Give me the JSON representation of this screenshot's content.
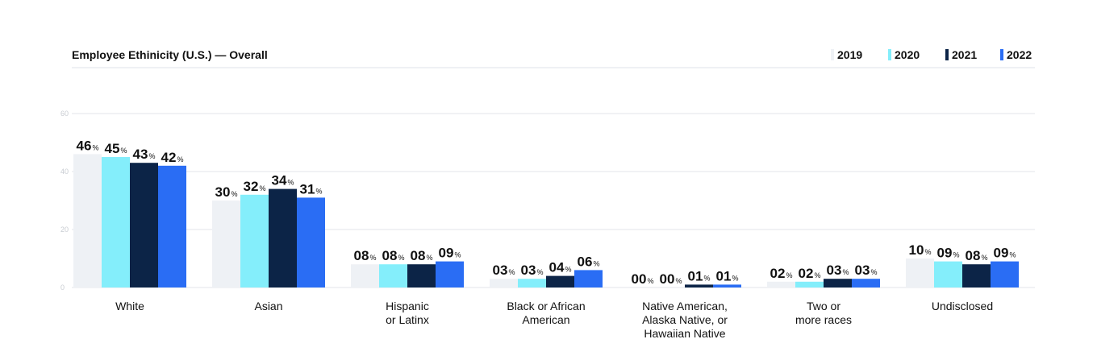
{
  "chart_data": {
    "type": "bar",
    "title": "Employee Ethinicity (U.S.) — Overall",
    "xlabel": "",
    "ylabel": "",
    "ylim": [
      0,
      60
    ],
    "yticks": [
      0,
      20,
      40,
      60
    ],
    "grid": true,
    "legend_position": "top-right",
    "categories": [
      [
        "White"
      ],
      [
        "Asian"
      ],
      [
        "Hispanic",
        "or Latinx"
      ],
      [
        "Black or African",
        "American"
      ],
      [
        "Native American,",
        "Alaska Native, or",
        "Hawaiian Native"
      ],
      [
        "Two or",
        "more races"
      ],
      [
        "Undisclosed"
      ]
    ],
    "series": [
      {
        "name": "2019",
        "color": "#eef1f5",
        "values": [
          46,
          30,
          8,
          3,
          0,
          2,
          10
        ],
        "labels": [
          "46",
          "30",
          "08",
          "03",
          "00",
          "02",
          "10"
        ]
      },
      {
        "name": "2020",
        "color": "#84eefb",
        "values": [
          45,
          32,
          8,
          3,
          0,
          2,
          9
        ],
        "labels": [
          "45",
          "32",
          "08",
          "03",
          "00",
          "02",
          "09"
        ]
      },
      {
        "name": "2021",
        "color": "#0c2447",
        "values": [
          43,
          34,
          8,
          4,
          1,
          3,
          8
        ],
        "labels": [
          "43",
          "34",
          "08",
          "04",
          "01",
          "03",
          "08"
        ]
      },
      {
        "name": "2022",
        "color": "#2a6df4",
        "values": [
          42,
          31,
          9,
          6,
          1,
          3,
          9
        ],
        "labels": [
          "42",
          "31",
          "09",
          "06",
          "01",
          "03",
          "09"
        ]
      }
    ],
    "value_suffix": "%"
  }
}
